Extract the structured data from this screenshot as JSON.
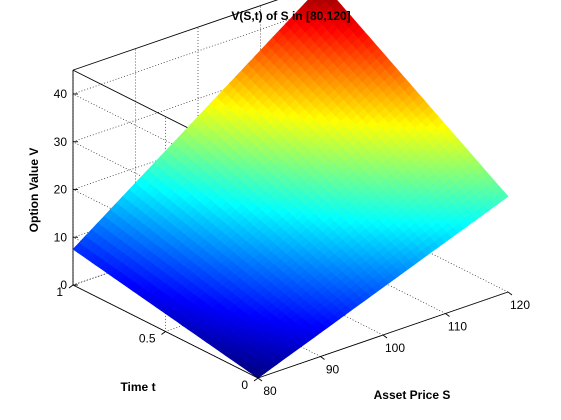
{
  "chart_data": {
    "type": "surface",
    "title": "V(S,t) of S in [80,120]",
    "xlabel": "Asset Price S",
    "ylabel": "Time t",
    "zlabel": "Option Value V",
    "x_ticks": [
      "80",
      "90",
      "100",
      "110",
      "120"
    ],
    "y_ticks": [
      "0",
      "0.5",
      "1"
    ],
    "z_ticks": [
      "0",
      "10",
      "20",
      "30",
      "40"
    ],
    "xlim": [
      80,
      120
    ],
    "ylim": [
      0,
      1
    ],
    "zlim": [
      0,
      45
    ],
    "grid": true,
    "colormap": "jet",
    "corner_values": [
      {
        "S": 80,
        "t": 0,
        "V": 0
      },
      {
        "S": 120,
        "t": 0,
        "V": 20
      },
      {
        "S": 80,
        "t": 1,
        "V": 7.5
      },
      {
        "S": 120,
        "t": 1,
        "V": 45
      }
    ]
  }
}
